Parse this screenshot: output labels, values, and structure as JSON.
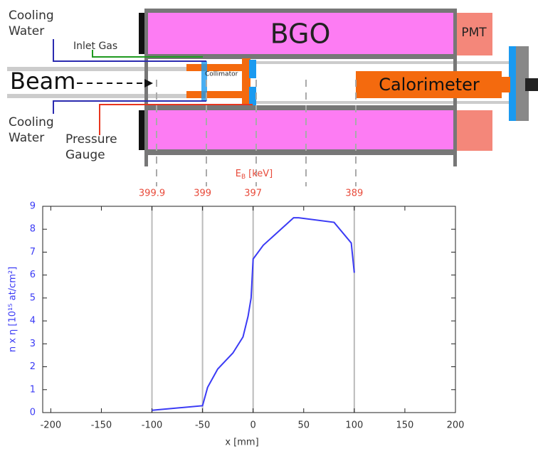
{
  "diagram": {
    "cooling_water_top": [
      "Cooling",
      "Water"
    ],
    "inlet_gas": "Inlet Gas",
    "bgo": "BGO",
    "pmt": "PMT",
    "beam": "Beam",
    "collimator": "Collimator",
    "calorimeter": "Calorimeter",
    "cooling_water_bottom": [
      "Cooling",
      "Water"
    ],
    "pressure_gauge": [
      "Pressure",
      "Gauge"
    ]
  },
  "chart_data": {
    "type": "line",
    "xlabel": "x [mm]",
    "ylabel": "n x η [10¹⁵ at/cm²]",
    "top_axis_label": {
      "main": "E",
      "sub": "B",
      "unit": "[keV]"
    },
    "top_ticks": [
      {
        "value": -100,
        "label": "399.9"
      },
      {
        "value": -50,
        "label": "399"
      },
      {
        "value": 0,
        "label": "397"
      },
      {
        "value": 100,
        "label": "389"
      }
    ],
    "xlim": [
      -208,
      200
    ],
    "ylim": [
      0,
      9
    ],
    "xticks": [
      -200,
      -150,
      -100,
      -50,
      0,
      50,
      100,
      150,
      200
    ],
    "yticks": [
      0,
      1,
      2,
      3,
      4,
      5,
      6,
      7,
      8,
      9
    ],
    "series": [
      {
        "color": "#3b3bf5",
        "x": [
          -100,
          -50,
          -45,
          -35,
          -20,
          -10,
          -5,
          -2,
          0,
          10,
          40,
          45,
          80,
          97,
          100
        ],
        "values": [
          0.1,
          0.3,
          1.1,
          1.9,
          2.6,
          3.3,
          4.2,
          5.0,
          6.7,
          7.3,
          8.5,
          8.5,
          8.3,
          7.4,
          6.1
        ]
      }
    ]
  }
}
